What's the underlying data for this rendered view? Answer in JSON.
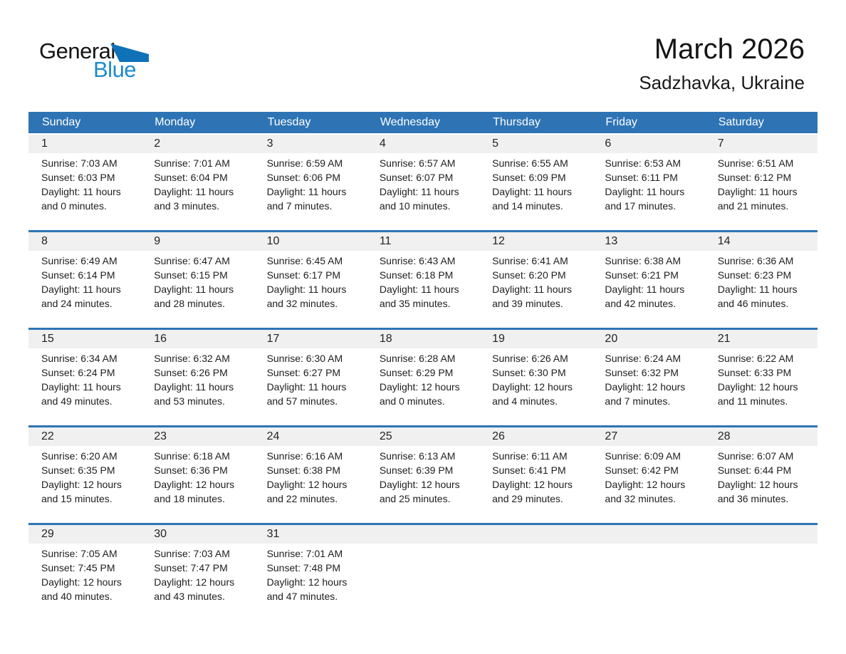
{
  "logo": {
    "text_general": "General",
    "text_blue": "Blue"
  },
  "header": {
    "title": "March 2026",
    "subtitle": "Sadzhavka, Ukraine"
  },
  "colors": {
    "accent": "#2e74b5",
    "band": "#f0f0f0",
    "logo_blue": "#1d8bcb",
    "logo_triangle": "#0f72b9"
  },
  "calendar": {
    "weekdays": [
      "Sunday",
      "Monday",
      "Tuesday",
      "Wednesday",
      "Thursday",
      "Friday",
      "Saturday"
    ],
    "weeks": [
      [
        {
          "day": "1",
          "lines": [
            "Sunrise: 7:03 AM",
            "Sunset: 6:03 PM",
            "Daylight: 11 hours",
            "and 0 minutes."
          ]
        },
        {
          "day": "2",
          "lines": [
            "Sunrise: 7:01 AM",
            "Sunset: 6:04 PM",
            "Daylight: 11 hours",
            "and 3 minutes."
          ]
        },
        {
          "day": "3",
          "lines": [
            "Sunrise: 6:59 AM",
            "Sunset: 6:06 PM",
            "Daylight: 11 hours",
            "and 7 minutes."
          ]
        },
        {
          "day": "4",
          "lines": [
            "Sunrise: 6:57 AM",
            "Sunset: 6:07 PM",
            "Daylight: 11 hours",
            "and 10 minutes."
          ]
        },
        {
          "day": "5",
          "lines": [
            "Sunrise: 6:55 AM",
            "Sunset: 6:09 PM",
            "Daylight: 11 hours",
            "and 14 minutes."
          ]
        },
        {
          "day": "6",
          "lines": [
            "Sunrise: 6:53 AM",
            "Sunset: 6:11 PM",
            "Daylight: 11 hours",
            "and 17 minutes."
          ]
        },
        {
          "day": "7",
          "lines": [
            "Sunrise: 6:51 AM",
            "Sunset: 6:12 PM",
            "Daylight: 11 hours",
            "and 21 minutes."
          ]
        }
      ],
      [
        {
          "day": "8",
          "lines": [
            "Sunrise: 6:49 AM",
            "Sunset: 6:14 PM",
            "Daylight: 11 hours",
            "and 24 minutes."
          ]
        },
        {
          "day": "9",
          "lines": [
            "Sunrise: 6:47 AM",
            "Sunset: 6:15 PM",
            "Daylight: 11 hours",
            "and 28 minutes."
          ]
        },
        {
          "day": "10",
          "lines": [
            "Sunrise: 6:45 AM",
            "Sunset: 6:17 PM",
            "Daylight: 11 hours",
            "and 32 minutes."
          ]
        },
        {
          "day": "11",
          "lines": [
            "Sunrise: 6:43 AM",
            "Sunset: 6:18 PM",
            "Daylight: 11 hours",
            "and 35 minutes."
          ]
        },
        {
          "day": "12",
          "lines": [
            "Sunrise: 6:41 AM",
            "Sunset: 6:20 PM",
            "Daylight: 11 hours",
            "and 39 minutes."
          ]
        },
        {
          "day": "13",
          "lines": [
            "Sunrise: 6:38 AM",
            "Sunset: 6:21 PM",
            "Daylight: 11 hours",
            "and 42 minutes."
          ]
        },
        {
          "day": "14",
          "lines": [
            "Sunrise: 6:36 AM",
            "Sunset: 6:23 PM",
            "Daylight: 11 hours",
            "and 46 minutes."
          ]
        }
      ],
      [
        {
          "day": "15",
          "lines": [
            "Sunrise: 6:34 AM",
            "Sunset: 6:24 PM",
            "Daylight: 11 hours",
            "and 49 minutes."
          ]
        },
        {
          "day": "16",
          "lines": [
            "Sunrise: 6:32 AM",
            "Sunset: 6:26 PM",
            "Daylight: 11 hours",
            "and 53 minutes."
          ]
        },
        {
          "day": "17",
          "lines": [
            "Sunrise: 6:30 AM",
            "Sunset: 6:27 PM",
            "Daylight: 11 hours",
            "and 57 minutes."
          ]
        },
        {
          "day": "18",
          "lines": [
            "Sunrise: 6:28 AM",
            "Sunset: 6:29 PM",
            "Daylight: 12 hours",
            "and 0 minutes."
          ]
        },
        {
          "day": "19",
          "lines": [
            "Sunrise: 6:26 AM",
            "Sunset: 6:30 PM",
            "Daylight: 12 hours",
            "and 4 minutes."
          ]
        },
        {
          "day": "20",
          "lines": [
            "Sunrise: 6:24 AM",
            "Sunset: 6:32 PM",
            "Daylight: 12 hours",
            "and 7 minutes."
          ]
        },
        {
          "day": "21",
          "lines": [
            "Sunrise: 6:22 AM",
            "Sunset: 6:33 PM",
            "Daylight: 12 hours",
            "and 11 minutes."
          ]
        }
      ],
      [
        {
          "day": "22",
          "lines": [
            "Sunrise: 6:20 AM",
            "Sunset: 6:35 PM",
            "Daylight: 12 hours",
            "and 15 minutes."
          ]
        },
        {
          "day": "23",
          "lines": [
            "Sunrise: 6:18 AM",
            "Sunset: 6:36 PM",
            "Daylight: 12 hours",
            "and 18 minutes."
          ]
        },
        {
          "day": "24",
          "lines": [
            "Sunrise: 6:16 AM",
            "Sunset: 6:38 PM",
            "Daylight: 12 hours",
            "and 22 minutes."
          ]
        },
        {
          "day": "25",
          "lines": [
            "Sunrise: 6:13 AM",
            "Sunset: 6:39 PM",
            "Daylight: 12 hours",
            "and 25 minutes."
          ]
        },
        {
          "day": "26",
          "lines": [
            "Sunrise: 6:11 AM",
            "Sunset: 6:41 PM",
            "Daylight: 12 hours",
            "and 29 minutes."
          ]
        },
        {
          "day": "27",
          "lines": [
            "Sunrise: 6:09 AM",
            "Sunset: 6:42 PM",
            "Daylight: 12 hours",
            "and 32 minutes."
          ]
        },
        {
          "day": "28",
          "lines": [
            "Sunrise: 6:07 AM",
            "Sunset: 6:44 PM",
            "Daylight: 12 hours",
            "and 36 minutes."
          ]
        }
      ],
      [
        {
          "day": "29",
          "lines": [
            "Sunrise: 7:05 AM",
            "Sunset: 7:45 PM",
            "Daylight: 12 hours",
            "and 40 minutes."
          ]
        },
        {
          "day": "30",
          "lines": [
            "Sunrise: 7:03 AM",
            "Sunset: 7:47 PM",
            "Daylight: 12 hours",
            "and 43 minutes."
          ]
        },
        {
          "day": "31",
          "lines": [
            "Sunrise: 7:01 AM",
            "Sunset: 7:48 PM",
            "Daylight: 12 hours",
            "and 47 minutes."
          ]
        },
        null,
        null,
        null,
        null
      ]
    ]
  }
}
